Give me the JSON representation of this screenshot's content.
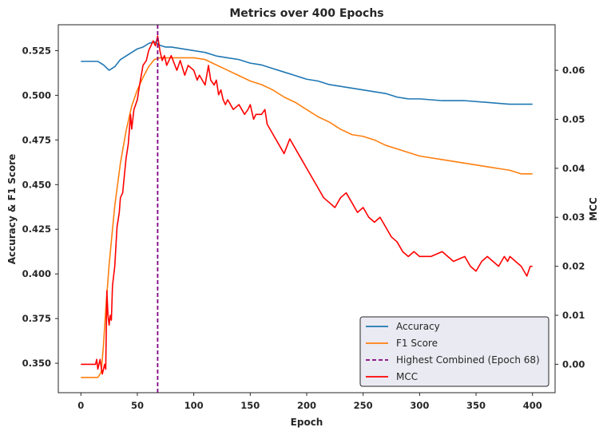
{
  "chart_data": {
    "type": "line",
    "title": "Metrics over 400 Epochs",
    "xlabel": "Epoch",
    "ylabel_left": "Accuracy & F1 Score",
    "ylabel_right": "MCC",
    "xlim": [
      -20,
      420
    ],
    "ylim_left": [
      0.3335,
      0.5395
    ],
    "ylim_right": [
      -0.0058,
      0.0693
    ],
    "x_ticks": [
      0,
      50,
      100,
      150,
      200,
      250,
      300,
      350,
      400
    ],
    "y_ticks_left": [
      0.35,
      0.375,
      0.4,
      0.425,
      0.45,
      0.475,
      0.5,
      0.525
    ],
    "y_ticks_right": [
      0.0,
      0.01,
      0.02,
      0.03,
      0.04,
      0.05,
      0.06
    ],
    "grid": false,
    "legend_position": "lower right",
    "vline": {
      "x": 68,
      "color": "#800080",
      "style": "dashed",
      "label": "Highest Combined (Epoch 68)"
    },
    "series": [
      {
        "name": "Accuracy",
        "axis": "left",
        "color": "#1f77b4",
        "points": [
          [
            0,
            0.519
          ],
          [
            10,
            0.519
          ],
          [
            15,
            0.519
          ],
          [
            20,
            0.517
          ],
          [
            25,
            0.514
          ],
          [
            30,
            0.516
          ],
          [
            35,
            0.52
          ],
          [
            40,
            0.522
          ],
          [
            45,
            0.524
          ],
          [
            50,
            0.526
          ],
          [
            55,
            0.527
          ],
          [
            60,
            0.529
          ],
          [
            65,
            0.53
          ],
          [
            68,
            0.529
          ],
          [
            70,
            0.528
          ],
          [
            75,
            0.527
          ],
          [
            80,
            0.527
          ],
          [
            90,
            0.526
          ],
          [
            100,
            0.525
          ],
          [
            110,
            0.524
          ],
          [
            120,
            0.522
          ],
          [
            130,
            0.521
          ],
          [
            140,
            0.52
          ],
          [
            150,
            0.518
          ],
          [
            160,
            0.517
          ],
          [
            170,
            0.515
          ],
          [
            180,
            0.513
          ],
          [
            190,
            0.511
          ],
          [
            200,
            0.509
          ],
          [
            210,
            0.508
          ],
          [
            220,
            0.506
          ],
          [
            230,
            0.505
          ],
          [
            240,
            0.504
          ],
          [
            250,
            0.503
          ],
          [
            260,
            0.502
          ],
          [
            270,
            0.501
          ],
          [
            280,
            0.499
          ],
          [
            290,
            0.498
          ],
          [
            300,
            0.498
          ],
          [
            320,
            0.497
          ],
          [
            340,
            0.497
          ],
          [
            360,
            0.496
          ],
          [
            380,
            0.495
          ],
          [
            400,
            0.495
          ]
        ]
      },
      {
        "name": "F1 Score",
        "axis": "left",
        "color": "#ff7f0e",
        "points": [
          [
            0,
            0.342
          ],
          [
            15,
            0.342
          ],
          [
            18,
            0.345
          ],
          [
            20,
            0.36
          ],
          [
            22,
            0.38
          ],
          [
            25,
            0.405
          ],
          [
            28,
            0.425
          ],
          [
            30,
            0.438
          ],
          [
            35,
            0.462
          ],
          [
            40,
            0.48
          ],
          [
            45,
            0.494
          ],
          [
            50,
            0.503
          ],
          [
            55,
            0.51
          ],
          [
            60,
            0.516
          ],
          [
            65,
            0.52
          ],
          [
            70,
            0.521
          ],
          [
            80,
            0.521
          ],
          [
            90,
            0.521
          ],
          [
            100,
            0.521
          ],
          [
            110,
            0.52
          ],
          [
            120,
            0.517
          ],
          [
            130,
            0.514
          ],
          [
            140,
            0.511
          ],
          [
            150,
            0.508
          ],
          [
            160,
            0.506
          ],
          [
            170,
            0.503
          ],
          [
            180,
            0.499
          ],
          [
            190,
            0.496
          ],
          [
            200,
            0.492
          ],
          [
            210,
            0.488
          ],
          [
            220,
            0.485
          ],
          [
            230,
            0.481
          ],
          [
            240,
            0.478
          ],
          [
            250,
            0.477
          ],
          [
            260,
            0.475
          ],
          [
            270,
            0.472
          ],
          [
            280,
            0.47
          ],
          [
            290,
            0.468
          ],
          [
            300,
            0.466
          ],
          [
            320,
            0.464
          ],
          [
            340,
            0.462
          ],
          [
            360,
            0.46
          ],
          [
            380,
            0.458
          ],
          [
            390,
            0.456
          ],
          [
            400,
            0.456
          ]
        ]
      },
      {
        "name": "MCC",
        "axis": "right",
        "color": "#ff0000",
        "points": [
          [
            0,
            0.0
          ],
          [
            10,
            0.0
          ],
          [
            13,
            0.0
          ],
          [
            14,
            0.001
          ],
          [
            15,
            -0.001
          ],
          [
            17,
            0.001
          ],
          [
            19,
            -0.002
          ],
          [
            21,
            0.0
          ],
          [
            22,
            -0.001
          ],
          [
            23,
            0.015
          ],
          [
            24,
            0.01
          ],
          [
            25,
            0.008
          ],
          [
            26,
            0.01
          ],
          [
            27,
            0.009
          ],
          [
            28,
            0.016
          ],
          [
            30,
            0.02
          ],
          [
            32,
            0.028
          ],
          [
            34,
            0.031
          ],
          [
            35,
            0.034
          ],
          [
            37,
            0.035
          ],
          [
            40,
            0.042
          ],
          [
            42,
            0.045
          ],
          [
            44,
            0.051
          ],
          [
            45,
            0.048
          ],
          [
            47,
            0.052
          ],
          [
            50,
            0.054
          ],
          [
            52,
            0.057
          ],
          [
            55,
            0.061
          ],
          [
            58,
            0.062
          ],
          [
            60,
            0.064
          ],
          [
            62,
            0.065
          ],
          [
            64,
            0.066
          ],
          [
            66,
            0.065
          ],
          [
            68,
            0.067
          ],
          [
            70,
            0.064
          ],
          [
            72,
            0.062
          ],
          [
            74,
            0.063
          ],
          [
            76,
            0.061
          ],
          [
            78,
            0.062
          ],
          [
            80,
            0.063
          ],
          [
            85,
            0.06
          ],
          [
            88,
            0.062
          ],
          [
            92,
            0.059
          ],
          [
            95,
            0.061
          ],
          [
            100,
            0.06
          ],
          [
            103,
            0.058
          ],
          [
            105,
            0.059
          ],
          [
            110,
            0.057
          ],
          [
            113,
            0.061
          ],
          [
            115,
            0.058
          ],
          [
            118,
            0.057
          ],
          [
            120,
            0.058
          ],
          [
            122,
            0.055
          ],
          [
            124,
            0.056
          ],
          [
            126,
            0.054
          ],
          [
            128,
            0.053
          ],
          [
            130,
            0.054
          ],
          [
            135,
            0.052
          ],
          [
            140,
            0.053
          ],
          [
            145,
            0.051
          ],
          [
            148,
            0.052
          ],
          [
            150,
            0.053
          ],
          [
            153,
            0.05
          ],
          [
            155,
            0.051
          ],
          [
            160,
            0.051
          ],
          [
            163,
            0.052
          ],
          [
            165,
            0.049
          ],
          [
            170,
            0.047
          ],
          [
            175,
            0.045
          ],
          [
            180,
            0.043
          ],
          [
            185,
            0.046
          ],
          [
            190,
            0.044
          ],
          [
            195,
            0.042
          ],
          [
            200,
            0.04
          ],
          [
            205,
            0.038
          ],
          [
            210,
            0.036
          ],
          [
            215,
            0.034
          ],
          [
            220,
            0.033
          ],
          [
            225,
            0.032
          ],
          [
            230,
            0.034
          ],
          [
            235,
            0.035
          ],
          [
            240,
            0.033
          ],
          [
            245,
            0.031
          ],
          [
            250,
            0.032
          ],
          [
            255,
            0.03
          ],
          [
            260,
            0.029
          ],
          [
            265,
            0.03
          ],
          [
            270,
            0.028
          ],
          [
            275,
            0.026
          ],
          [
            280,
            0.025
          ],
          [
            285,
            0.023
          ],
          [
            290,
            0.022
          ],
          [
            295,
            0.023
          ],
          [
            300,
            0.022
          ],
          [
            310,
            0.022
          ],
          [
            320,
            0.023
          ],
          [
            330,
            0.021
          ],
          [
            340,
            0.022
          ],
          [
            345,
            0.02
          ],
          [
            350,
            0.019
          ],
          [
            355,
            0.021
          ],
          [
            360,
            0.022
          ],
          [
            365,
            0.021
          ],
          [
            370,
            0.02
          ],
          [
            375,
            0.022
          ],
          [
            378,
            0.021
          ],
          [
            380,
            0.022
          ],
          [
            385,
            0.021
          ],
          [
            390,
            0.02
          ],
          [
            395,
            0.018
          ],
          [
            398,
            0.02
          ],
          [
            400,
            0.02
          ]
        ]
      }
    ]
  }
}
